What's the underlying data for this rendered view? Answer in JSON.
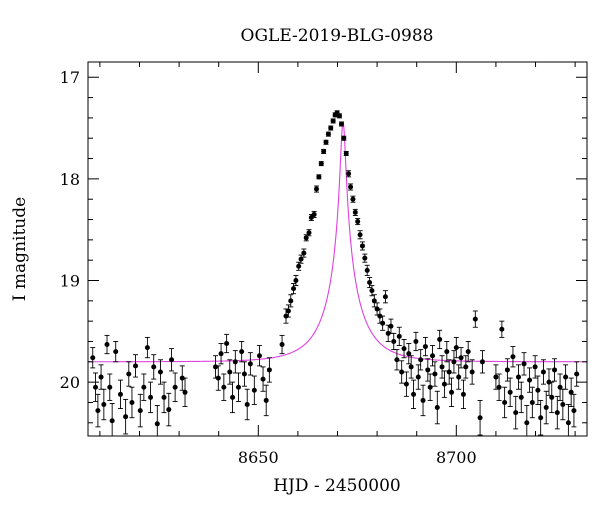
{
  "chart_data": {
    "type": "scatter",
    "title": "OGLE-2019-BLG-0988",
    "xlabel": "HJD - 2450000",
    "ylabel": "I magnitude",
    "xlim": [
      8607,
      8733
    ],
    "ylim": [
      20.53,
      16.85
    ],
    "y_inverted": true,
    "grid": false,
    "legend": "none",
    "x_ticks": [
      8650,
      8700
    ],
    "y_ticks": [
      17,
      18,
      19,
      20
    ],
    "model_color": "#e040e0",
    "point_color": "#000000",
    "model": {
      "name": "",
      "t0": 8671.4,
      "u0": 0.062,
      "tE": 9.5,
      "Fs": 0.52,
      "Fb": 0.48,
      "I_base": 19.8
    },
    "series": [
      {
        "name": "",
        "points": [
          [
            8608.2,
            19.76,
            0.1
          ],
          [
            8608.9,
            20.05,
            0.14
          ],
          [
            8609.5,
            20.28,
            0.16
          ],
          [
            8610.3,
            19.95,
            0.12
          ],
          [
            8611.0,
            20.22,
            0.15
          ],
          [
            8611.8,
            19.63,
            0.09
          ],
          [
            8612.5,
            20.05,
            0.13
          ],
          [
            8613.1,
            20.38,
            0.17
          ],
          [
            8614.0,
            19.7,
            0.1
          ],
          [
            8615.2,
            20.12,
            0.14
          ],
          [
            8616.5,
            20.34,
            0.17
          ],
          [
            8617.3,
            19.92,
            0.12
          ],
          [
            8618.1,
            20.2,
            0.15
          ],
          [
            8619.0,
            19.84,
            0.11
          ],
          [
            8620.2,
            20.28,
            0.16
          ],
          [
            8621.1,
            20.05,
            0.13
          ],
          [
            8622.0,
            19.66,
            0.1
          ],
          [
            8622.8,
            20.15,
            0.15
          ],
          [
            8623.6,
            19.85,
            0.12
          ],
          [
            8624.5,
            20.41,
            0.18
          ],
          [
            8625.3,
            19.9,
            0.12
          ],
          [
            8626.2,
            20.15,
            0.15
          ],
          [
            8627.4,
            20.27,
            0.16
          ],
          [
            8628.1,
            19.78,
            0.11
          ],
          [
            8629.0,
            20.05,
            0.14
          ],
          [
            8630.8,
            19.96,
            0.12
          ],
          [
            8631.5,
            20.1,
            0.14
          ],
          [
            8639.2,
            19.85,
            0.11
          ],
          [
            8639.9,
            19.96,
            0.12
          ],
          [
            8640.6,
            19.72,
            0.1
          ],
          [
            8641.3,
            20.05,
            0.13
          ],
          [
            8642.0,
            19.62,
            0.09
          ],
          [
            8642.8,
            19.9,
            0.12
          ],
          [
            8643.5,
            20.15,
            0.15
          ],
          [
            8644.2,
            19.8,
            0.11
          ],
          [
            8645.0,
            20.05,
            0.14
          ],
          [
            8645.8,
            19.7,
            0.1
          ],
          [
            8646.5,
            19.92,
            0.12
          ],
          [
            8647.2,
            20.22,
            0.15
          ],
          [
            8648.0,
            19.82,
            0.11
          ],
          [
            8649.0,
            20.08,
            0.14
          ],
          [
            8650.3,
            19.74,
            0.1
          ],
          [
            8651.2,
            19.97,
            0.12
          ],
          [
            8652.0,
            20.18,
            0.15
          ],
          [
            8652.8,
            19.88,
            0.12
          ],
          [
            8656.0,
            19.63,
            0.09
          ],
          [
            8657.0,
            19.35,
            0.07
          ],
          [
            8657.6,
            19.3,
            0.06
          ],
          [
            8658.2,
            19.2,
            0.06
          ],
          [
            8658.9,
            19.08,
            0.05
          ],
          [
            8659.5,
            19.0,
            0.05
          ],
          [
            8660.2,
            18.86,
            0.04
          ],
          [
            8660.8,
            18.79,
            0.04
          ],
          [
            8661.5,
            18.73,
            0.04
          ],
          [
            8662.1,
            18.58,
            0.03
          ],
          [
            8662.8,
            18.53,
            0.03
          ],
          [
            8663.4,
            18.38,
            0.03
          ],
          [
            8664.1,
            18.35,
            0.03
          ],
          [
            8664.7,
            18.1,
            0.03
          ],
          [
            8665.3,
            17.98,
            0.02
          ],
          [
            8665.9,
            17.85,
            0.02
          ],
          [
            8666.5,
            17.73,
            0.02
          ],
          [
            8667.1,
            17.64,
            0.02
          ],
          [
            8667.7,
            17.56,
            0.02
          ],
          [
            8668.3,
            17.5,
            0.02
          ],
          [
            8668.9,
            17.43,
            0.02
          ],
          [
            8669.4,
            17.37,
            0.02
          ],
          [
            8669.9,
            17.35,
            0.02
          ],
          [
            8670.5,
            17.38,
            0.02
          ],
          [
            8671.0,
            17.46,
            0.02
          ],
          [
            8671.6,
            17.6,
            0.02
          ],
          [
            8672.2,
            17.75,
            0.02
          ],
          [
            8672.8,
            17.95,
            0.03
          ],
          [
            8673.3,
            18.08,
            0.03
          ],
          [
            8673.9,
            18.2,
            0.03
          ],
          [
            8674.5,
            18.33,
            0.03
          ],
          [
            8675.1,
            18.42,
            0.03
          ],
          [
            8675.7,
            18.55,
            0.04
          ],
          [
            8676.3,
            18.66,
            0.04
          ],
          [
            8676.9,
            18.78,
            0.04
          ],
          [
            8677.5,
            18.9,
            0.05
          ],
          [
            8678.1,
            19.02,
            0.05
          ],
          [
            8678.7,
            19.1,
            0.05
          ],
          [
            8679.3,
            19.2,
            0.06
          ],
          [
            8680.0,
            19.28,
            0.06
          ],
          [
            8680.7,
            19.35,
            0.07
          ],
          [
            8681.4,
            19.42,
            0.07
          ],
          [
            8682.1,
            19.16,
            0.06
          ],
          [
            8682.8,
            19.52,
            0.08
          ],
          [
            8683.5,
            19.45,
            0.07
          ],
          [
            8684.2,
            19.6,
            0.08
          ],
          [
            8685.0,
            19.78,
            0.1
          ],
          [
            8685.6,
            19.55,
            0.09
          ],
          [
            8686.2,
            19.9,
            0.11
          ],
          [
            8686.8,
            19.67,
            0.09
          ],
          [
            8687.4,
            20.02,
            0.12
          ],
          [
            8688.0,
            19.72,
            0.1
          ],
          [
            8688.6,
            19.85,
            0.11
          ],
          [
            8689.2,
            20.12,
            0.14
          ],
          [
            8689.8,
            19.6,
            0.09
          ],
          [
            8690.4,
            19.95,
            0.12
          ],
          [
            8691.0,
            19.78,
            0.1
          ],
          [
            8691.6,
            20.18,
            0.15
          ],
          [
            8692.2,
            19.65,
            0.09
          ],
          [
            8692.8,
            19.88,
            0.11
          ],
          [
            8693.4,
            20.05,
            0.13
          ],
          [
            8694.0,
            19.74,
            0.1
          ],
          [
            8694.6,
            19.92,
            0.12
          ],
          [
            8695.2,
            20.25,
            0.16
          ],
          [
            8695.8,
            19.58,
            0.09
          ],
          [
            8696.4,
            19.85,
            0.11
          ],
          [
            8697.0,
            20.02,
            0.13
          ],
          [
            8697.6,
            19.7,
            0.1
          ],
          [
            8698.2,
            19.9,
            0.12
          ],
          [
            8698.8,
            20.1,
            0.14
          ],
          [
            8699.4,
            19.8,
            0.11
          ],
          [
            8700.0,
            19.66,
            0.1
          ],
          [
            8700.6,
            19.95,
            0.12
          ],
          [
            8701.2,
            19.76,
            0.1
          ],
          [
            8701.8,
            20.12,
            0.14
          ],
          [
            8702.4,
            19.85,
            0.11
          ],
          [
            8703.0,
            19.7,
            0.1
          ],
          [
            8704.0,
            19.9,
            0.12
          ],
          [
            8704.8,
            19.38,
            0.08
          ],
          [
            8706.0,
            20.35,
            0.17
          ],
          [
            8706.6,
            19.8,
            0.11
          ],
          [
            8710.0,
            19.95,
            0.12
          ],
          [
            8710.8,
            20.05,
            0.13
          ],
          [
            8711.5,
            19.48,
            0.08
          ],
          [
            8712.2,
            20.2,
            0.15
          ],
          [
            8712.9,
            19.88,
            0.11
          ],
          [
            8713.6,
            20.1,
            0.14
          ],
          [
            8714.3,
            19.75,
            0.1
          ],
          [
            8715.0,
            20.3,
            0.16
          ],
          [
            8715.7,
            19.95,
            0.12
          ],
          [
            8716.4,
            20.15,
            0.15
          ],
          [
            8717.1,
            19.82,
            0.11
          ],
          [
            8717.8,
            20.4,
            0.17
          ],
          [
            8718.5,
            19.98,
            0.12
          ],
          [
            8719.2,
            20.2,
            0.15
          ],
          [
            8719.9,
            19.85,
            0.11
          ],
          [
            8720.6,
            20.08,
            0.14
          ],
          [
            8721.3,
            20.35,
            0.17
          ],
          [
            8722.0,
            19.9,
            0.12
          ],
          [
            8722.7,
            20.25,
            0.16
          ],
          [
            8723.4,
            20.0,
            0.13
          ],
          [
            8724.1,
            20.15,
            0.15
          ],
          [
            8724.8,
            19.88,
            0.11
          ],
          [
            8725.5,
            20.3,
            0.16
          ],
          [
            8726.2,
            20.05,
            0.13
          ],
          [
            8726.9,
            20.22,
            0.15
          ],
          [
            8727.6,
            19.95,
            0.12
          ],
          [
            8728.3,
            20.4,
            0.18
          ],
          [
            8729.0,
            20.1,
            0.14
          ],
          [
            8729.7,
            20.28,
            0.16
          ],
          [
            8730.4,
            19.92,
            0.12
          ]
        ]
      }
    ]
  }
}
